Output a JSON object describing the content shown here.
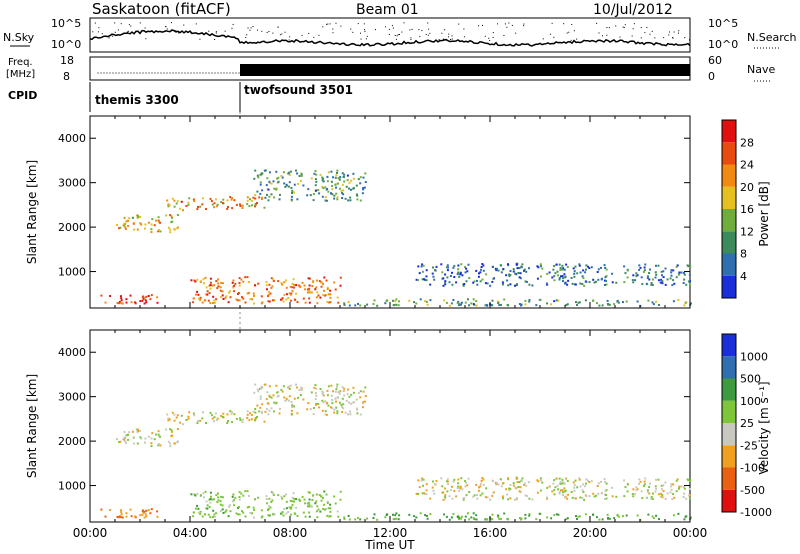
{
  "header": {
    "station": "Saskatoon (fitACF)",
    "beam": "Beam 01",
    "date": "10/Jul/2012"
  },
  "noise_panel": {
    "left_label": "N.Sky",
    "left_ticks": [
      "10^5",
      "10^0"
    ],
    "right_label": "N.Search",
    "right_ticks": [
      "10^5",
      "10^0"
    ]
  },
  "freq_panel": {
    "left_label_1": "Freq.",
    "left_label_2": "[MHz]",
    "left_ticks": [
      "18",
      "8"
    ],
    "right_label": "Nave",
    "right_ticks": [
      "60",
      "0"
    ]
  },
  "cpid": {
    "label": "CPID",
    "modes": [
      {
        "name": "themis 3300",
        "start_hour": 0
      },
      {
        "name": "twofsound 3501",
        "start_hour": 6
      }
    ]
  },
  "power_panel": {
    "ylabel": "Slant Range [km]",
    "colorbar_label": "Power [dB]",
    "colorbar_ticks": [
      "28",
      "24",
      "20",
      "16",
      "12",
      "8",
      "4"
    ]
  },
  "velocity_panel": {
    "ylabel": "Slant Range [km]",
    "colorbar_label": "Velocity [m s⁻¹]",
    "colorbar_ticks": [
      "1000",
      "500",
      "100",
      "25",
      "-25",
      "-100",
      "-500",
      "-1000"
    ]
  },
  "xaxis": {
    "label": "Time UT",
    "ticks": [
      "00:00",
      "04:00",
      "08:00",
      "12:00",
      "16:00",
      "20:00",
      "00:00"
    ]
  },
  "colors": {
    "power_scale": [
      "#1a2fd8",
      "#2f6fb0",
      "#3d8a5a",
      "#6fae3c",
      "#e6c020",
      "#f08a10",
      "#e84a10",
      "#e01010"
    ],
    "velocity_scale": [
      "#1a2fd8",
      "#2f6fb0",
      "#3e9a3e",
      "#7dc63a",
      "#c8c8c0",
      "#f0a020",
      "#e86010",
      "#e01010"
    ],
    "ground_scatter": "#c8c8c0"
  },
  "chart_data": [
    {
      "type": "heatmap",
      "title": "Power",
      "ylabel": "Slant Range [km]",
      "xlabel": "Time UT",
      "xlim_hours": [
        0,
        24
      ],
      "ylim_km": [
        180,
        4500
      ],
      "zlabel": "Power [dB]",
      "zlim": [
        0,
        30
      ],
      "echo_bands": [
        {
          "t_start": 0.3,
          "t_end": 3.2,
          "r_min": 300,
          "r_max": 500,
          "power_db": 26
        },
        {
          "t_start": 1.0,
          "t_end": 3.5,
          "r_min": 1900,
          "r_max": 2300,
          "power_db": 18
        },
        {
          "t_start": 3.0,
          "t_end": 7.0,
          "r_min": 2400,
          "r_max": 2700,
          "power_db": 20
        },
        {
          "t_start": 4.0,
          "t_end": 10.0,
          "r_min": 300,
          "r_max": 900,
          "power_db": 22
        },
        {
          "t_start": 6.5,
          "t_end": 11.0,
          "r_min": 2600,
          "r_max": 3300,
          "power_db": 10
        },
        {
          "t_start": 10.0,
          "t_end": 24.0,
          "r_min": 250,
          "r_max": 400,
          "power_db": 10
        },
        {
          "t_start": 13.0,
          "t_end": 24.0,
          "r_min": 700,
          "r_max": 1200,
          "power_db": 6
        }
      ]
    },
    {
      "type": "heatmap",
      "title": "Velocity",
      "ylabel": "Slant Range [km]",
      "xlabel": "Time UT",
      "xlim_hours": [
        0,
        24
      ],
      "ylim_km": [
        180,
        4500
      ],
      "zlabel": "Velocity [m s-1]",
      "zlim": [
        -1000,
        1000
      ],
      "echo_bands": [
        {
          "t_start": 0.3,
          "t_end": 3.2,
          "r_min": 300,
          "r_max": 500,
          "velocity": -100
        },
        {
          "t_start": 1.0,
          "t_end": 3.5,
          "r_min": 1900,
          "r_max": 2300,
          "velocity": 0
        },
        {
          "t_start": 3.0,
          "t_end": 7.0,
          "r_min": 2400,
          "r_max": 2700,
          "velocity": 0
        },
        {
          "t_start": 4.0,
          "t_end": 10.0,
          "r_min": 300,
          "r_max": 900,
          "velocity": 60
        },
        {
          "t_start": 6.5,
          "t_end": 11.0,
          "r_min": 2600,
          "r_max": 3300,
          "velocity": 0
        },
        {
          "t_start": 10.0,
          "t_end": 24.0,
          "r_min": 250,
          "r_max": 400,
          "velocity": 100
        },
        {
          "t_start": 13.0,
          "t_end": 24.0,
          "r_min": 700,
          "r_max": 1200,
          "velocity": 0
        }
      ]
    }
  ]
}
